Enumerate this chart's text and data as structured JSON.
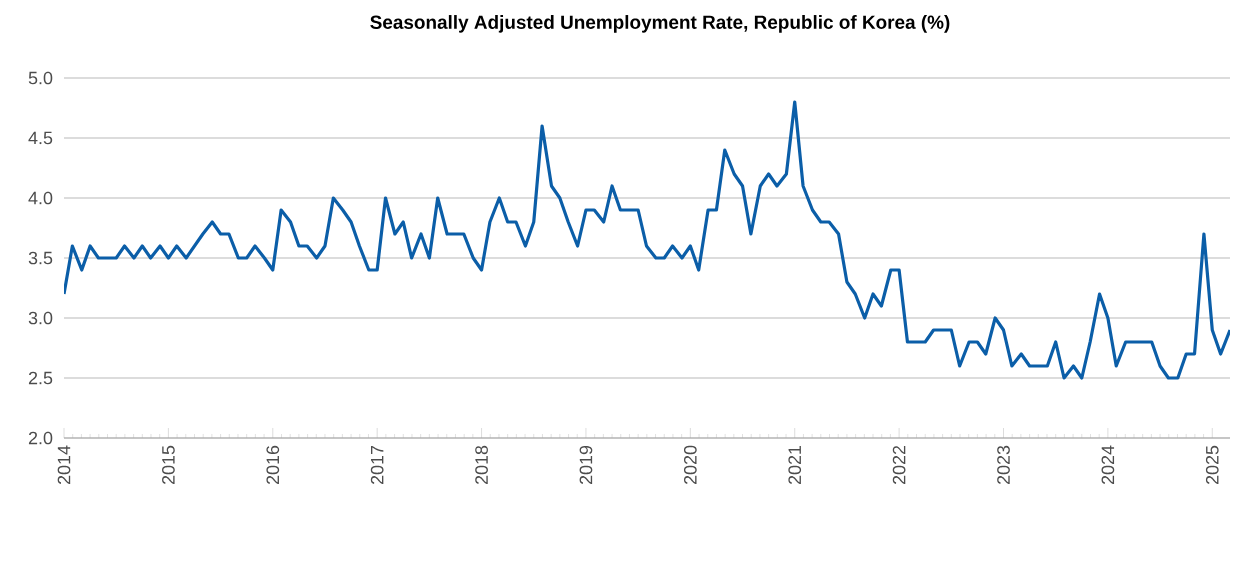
{
  "chart_data": {
    "type": "line",
    "title": "Seasonally Adjusted Unemployment Rate, Republic of Korea (%)",
    "x": [
      "2014-01",
      "2014-02",
      "2014-03",
      "2014-04",
      "2014-05",
      "2014-06",
      "2014-07",
      "2014-08",
      "2014-09",
      "2014-10",
      "2014-11",
      "2014-12",
      "2015-01",
      "2015-02",
      "2015-03",
      "2015-04",
      "2015-05",
      "2015-06",
      "2015-07",
      "2015-08",
      "2015-09",
      "2015-10",
      "2015-11",
      "2015-12",
      "2016-01",
      "2016-02",
      "2016-03",
      "2016-04",
      "2016-05",
      "2016-06",
      "2016-07",
      "2016-08",
      "2016-09",
      "2016-10",
      "2016-11",
      "2016-12",
      "2017-01",
      "2017-02",
      "2017-03",
      "2017-04",
      "2017-05",
      "2017-06",
      "2017-07",
      "2017-08",
      "2017-09",
      "2017-10",
      "2017-11",
      "2017-12",
      "2018-01",
      "2018-02",
      "2018-03",
      "2018-04",
      "2018-05",
      "2018-06",
      "2018-07",
      "2018-08",
      "2018-09",
      "2018-10",
      "2018-11",
      "2018-12",
      "2019-01",
      "2019-02",
      "2019-03",
      "2019-04",
      "2019-05",
      "2019-06",
      "2019-07",
      "2019-08",
      "2019-09",
      "2019-10",
      "2019-11",
      "2019-12",
      "2020-01",
      "2020-02",
      "2020-03",
      "2020-04",
      "2020-05",
      "2020-06",
      "2020-07",
      "2020-08",
      "2020-09",
      "2020-10",
      "2020-11",
      "2020-12",
      "2021-01",
      "2021-02",
      "2021-03",
      "2021-04",
      "2021-05",
      "2021-06",
      "2021-07",
      "2021-08",
      "2021-09",
      "2021-10",
      "2021-11",
      "2021-12",
      "2022-01",
      "2022-02",
      "2022-03",
      "2022-04",
      "2022-05",
      "2022-06",
      "2022-07",
      "2022-08",
      "2022-09",
      "2022-10",
      "2022-11",
      "2022-12",
      "2023-01",
      "2023-02",
      "2023-03",
      "2023-04",
      "2023-05",
      "2023-06",
      "2023-07",
      "2023-08",
      "2023-09",
      "2023-10",
      "2023-11",
      "2023-12",
      "2024-01",
      "2024-02",
      "2024-03",
      "2024-04",
      "2024-05",
      "2024-06",
      "2024-07",
      "2024-08",
      "2024-09",
      "2024-10",
      "2024-11",
      "2024-12",
      "2025-01",
      "2025-02",
      "2025-03"
    ],
    "series": [
      {
        "color": "#0b5ea8",
        "values": [
          3.2,
          3.6,
          3.4,
          3.6,
          3.5,
          3.5,
          3.5,
          3.6,
          3.5,
          3.6,
          3.5,
          3.6,
          3.5,
          3.6,
          3.5,
          3.6,
          3.7,
          3.8,
          3.7,
          3.7,
          3.5,
          3.5,
          3.6,
          3.5,
          3.4,
          3.9,
          3.8,
          3.6,
          3.6,
          3.5,
          3.6,
          4.0,
          3.9,
          3.8,
          3.6,
          3.4,
          3.4,
          4.0,
          3.7,
          3.8,
          3.5,
          3.7,
          3.5,
          4.0,
          3.7,
          3.7,
          3.7,
          3.5,
          3.4,
          3.8,
          4.0,
          3.8,
          3.8,
          3.6,
          3.8,
          4.6,
          4.1,
          4.0,
          3.8,
          3.6,
          3.9,
          3.9,
          3.8,
          4.1,
          3.9,
          3.9,
          3.9,
          3.6,
          3.5,
          3.5,
          3.6,
          3.5,
          3.6,
          3.4,
          3.9,
          3.9,
          4.4,
          4.2,
          4.1,
          3.7,
          4.1,
          4.2,
          4.1,
          4.2,
          4.8,
          4.1,
          3.9,
          3.8,
          3.8,
          3.7,
          3.3,
          3.2,
          3.0,
          3.2,
          3.1,
          3.4,
          3.4,
          2.8,
          2.8,
          2.8,
          2.9,
          2.9,
          2.9,
          2.6,
          2.8,
          2.8,
          2.7,
          3.0,
          2.9,
          2.6,
          2.7,
          2.6,
          2.6,
          2.6,
          2.8,
          2.5,
          2.6,
          2.5,
          2.8,
          3.2,
          3.0,
          2.6,
          2.8,
          2.8,
          2.8,
          2.8,
          2.6,
          2.5,
          2.5,
          2.7,
          2.7,
          3.7,
          2.9,
          2.7,
          2.9
        ]
      }
    ],
    "xlim": [
      "2014-01",
      "2025-03"
    ],
    "xticks": [
      "2014",
      "2015",
      "2016",
      "2017",
      "2018",
      "2019",
      "2020",
      "2021",
      "2022",
      "2023",
      "2024",
      "2025"
    ],
    "ylim": [
      2.0,
      5.0
    ],
    "yticks": [
      {
        "value": 2.0,
        "label": "2.0"
      },
      {
        "value": 2.5,
        "label": "2.5"
      },
      {
        "value": 3.0,
        "label": "3.0"
      },
      {
        "value": 3.5,
        "label": "3.5"
      },
      {
        "value": 4.0,
        "label": "4.0"
      },
      {
        "value": 4.5,
        "label": "4.5"
      },
      {
        "value": 5.0,
        "label": "5.0"
      }
    ],
    "grid": "y",
    "marker": "none",
    "line_style": "solid"
  }
}
